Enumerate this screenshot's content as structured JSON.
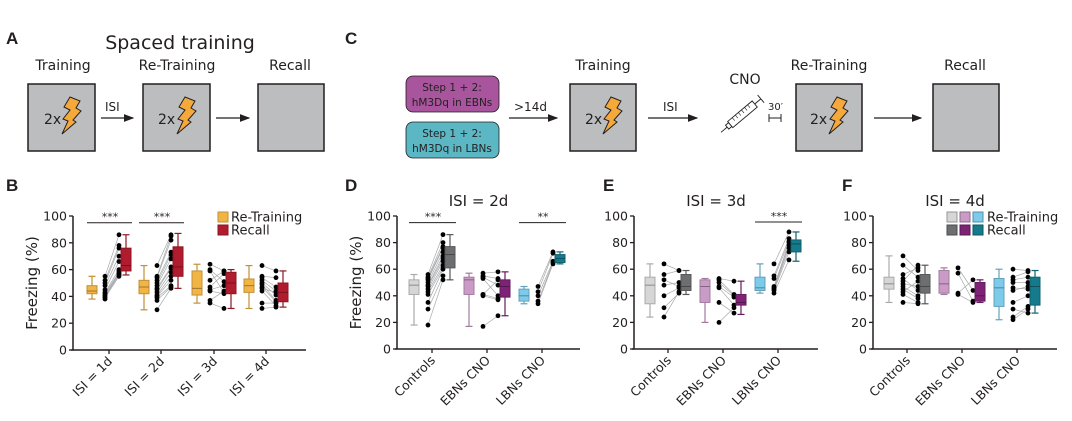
{
  "figure": {
    "panel_A": {
      "letter": "A",
      "title": "Spaced training",
      "stages": [
        {
          "label": "Training",
          "shock_label": "2x",
          "has_shock": true
        },
        {
          "label": "Re-Training",
          "shock_label": "2x",
          "has_shock": true
        },
        {
          "label": "Recall",
          "shock_label": "",
          "has_shock": false
        }
      ],
      "arrows": [
        {
          "label": "ISI"
        },
        {
          "label": ""
        }
      ]
    },
    "panel_C": {
      "letter": "C",
      "steps": [
        {
          "line1": "Step 1 + 2:",
          "line2": "hM3Dq in EBNs",
          "color": "#a8559d"
        },
        {
          "line1": "Step 1 + 2:",
          "line2": "hM3Dq in LBNs",
          "color": "#5bb7c3"
        }
      ],
      "arrow_labels": [
        ">14d",
        "ISI",
        ""
      ],
      "injection_label": "CNO",
      "delay_label": "30′",
      "stages": [
        {
          "label": "Training",
          "shock_label": "2x",
          "has_shock": true
        },
        {
          "label": "Re-Training",
          "shock_label": "2x",
          "has_shock": true
        },
        {
          "label": "Recall",
          "shock_label": "",
          "has_shock": false
        }
      ]
    },
    "colors": {
      "box_fill": "#bbbdbf",
      "shock": "#f5a93b",
      "retraining_B": "#f2b445",
      "recall_B": "#b01b2e",
      "controls_retraining": "#d6d6d6",
      "controls_recall": "#6d6e70",
      "ebns_retraining": "#c99bc6",
      "ebns_recall": "#7e2276",
      "lbns_retraining": "#7dcbea",
      "lbns_recall": "#147a8c"
    }
  },
  "chart_data": [
    {
      "panel": "B",
      "type": "box",
      "title": "",
      "ylabel": "Freezing (%)",
      "ylim": [
        0,
        100
      ],
      "yticks": [
        0,
        20,
        40,
        60,
        80,
        100
      ],
      "categories": [
        "ISI = 1d",
        "ISI = 2d",
        "ISI = 3d",
        "ISI = 4d"
      ],
      "legend": {
        "position": "top-right",
        "entries": [
          "Re-Training",
          "Recall"
        ]
      },
      "significance": [
        {
          "category": "ISI = 1d",
          "label": "***"
        },
        {
          "category": "ISI = 2d",
          "label": "***"
        }
      ],
      "groups": [
        {
          "retraining": {
            "min": 38,
            "q1": 42,
            "median": 44,
            "q3": 48,
            "max": 55
          },
          "recall": {
            "min": 56,
            "q1": 59,
            "median": 63,
            "q3": 76,
            "max": 86
          },
          "pairs": [
            [
              55,
              86
            ],
            [
              52,
              78
            ],
            [
              50,
              76
            ],
            [
              48,
              70
            ],
            [
              45,
              66
            ],
            [
              43,
              60
            ],
            [
              42,
              58
            ],
            [
              41,
              57
            ],
            [
              40,
              56
            ],
            [
              39,
              55
            ],
            [
              38,
              59
            ]
          ]
        },
        {
          "retraining": {
            "min": 30,
            "q1": 42,
            "median": 47,
            "q3": 52,
            "max": 63
          },
          "recall": {
            "min": 46,
            "q1": 55,
            "median": 62,
            "q3": 77,
            "max": 87
          },
          "pairs": [
            [
              63,
              86
            ],
            [
              55,
              85
            ],
            [
              54,
              82
            ],
            [
              52,
              73
            ],
            [
              50,
              71
            ],
            [
              48,
              68
            ],
            [
              46,
              62
            ],
            [
              45,
              61
            ],
            [
              43,
              58
            ],
            [
              41,
              55
            ],
            [
              40,
              52
            ],
            [
              39,
              48
            ],
            [
              37,
              47
            ],
            [
              30,
              46
            ]
          ]
        },
        {
          "retraining": {
            "min": 35,
            "q1": 41,
            "median": 46,
            "q3": 59,
            "max": 64
          },
          "recall": {
            "min": 31,
            "q1": 42,
            "median": 50,
            "q3": 58,
            "max": 60
          },
          "pairs": [
            [
              64,
              59
            ],
            [
              60,
              51
            ],
            [
              59,
              43
            ],
            [
              52,
              59
            ],
            [
              47,
              57
            ],
            [
              45,
              48
            ],
            [
              44,
              42
            ],
            [
              37,
              44
            ],
            [
              35,
              31
            ]
          ]
        },
        {
          "retraining": {
            "min": 31,
            "q1": 43,
            "median": 48,
            "q3": 53,
            "max": 63
          },
          "recall": {
            "min": 32,
            "q1": 36,
            "median": 43,
            "q3": 50,
            "max": 59
          },
          "pairs": [
            [
              63,
              59
            ],
            [
              55,
              54
            ],
            [
              54,
              47
            ],
            [
              52,
              44
            ],
            [
              50,
              41
            ],
            [
              49,
              37
            ],
            [
              47,
              36
            ],
            [
              46,
              43
            ],
            [
              44,
              33
            ],
            [
              35,
              35
            ],
            [
              31,
              32
            ]
          ]
        }
      ]
    },
    {
      "panel": "D",
      "type": "box",
      "title": "ISI = 2d",
      "ylabel": "Freezing (%)",
      "ylim": [
        0,
        100
      ],
      "yticks": [
        0,
        20,
        40,
        60,
        80,
        100
      ],
      "categories": [
        "Controls",
        "EBNs CNO",
        "LBNs CNO"
      ],
      "significance": [
        {
          "category": "Controls",
          "label": "***"
        },
        {
          "category": "LBNs CNO",
          "label": "**"
        }
      ],
      "groups": [
        {
          "retraining": {
            "min": 18,
            "q1": 41,
            "median": 48,
            "q3": 52,
            "max": 56
          },
          "recall": {
            "min": 52,
            "q1": 61,
            "median": 71,
            "q3": 77,
            "max": 86
          },
          "pairs": [
            [
              56,
              86
            ],
            [
              54,
              80
            ],
            [
              53,
              77
            ],
            [
              52,
              76
            ],
            [
              50,
              73
            ],
            [
              48,
              70
            ],
            [
              47,
              68
            ],
            [
              45,
              66
            ],
            [
              43,
              63
            ],
            [
              41,
              61
            ],
            [
              35,
              60
            ],
            [
              30,
              55
            ],
            [
              18,
              52
            ]
          ]
        },
        {
          "retraining": {
            "min": 17,
            "q1": 41,
            "median": 52,
            "q3": 54,
            "max": 57
          },
          "recall": {
            "min": 25,
            "q1": 39,
            "median": 47,
            "q3": 52,
            "max": 58
          },
          "pairs": [
            [
              57,
              58
            ],
            [
              55,
              53
            ],
            [
              54,
              48
            ],
            [
              53,
              40
            ],
            [
              41,
              52
            ],
            [
              41,
              38
            ],
            [
              40,
              37
            ],
            [
              17,
              25
            ]
          ]
        },
        {
          "retraining": {
            "min": 34,
            "q1": 36,
            "median": 40,
            "q3": 45,
            "max": 47
          },
          "recall": {
            "min": 64,
            "q1": 65,
            "median": 68,
            "q3": 71,
            "max": 73
          },
          "pairs": [
            [
              47,
              73
            ],
            [
              43,
              72
            ],
            [
              40,
              66
            ],
            [
              36,
              65
            ],
            [
              34,
              64
            ]
          ]
        }
      ]
    },
    {
      "panel": "E",
      "type": "box",
      "title": "ISI = 3d",
      "ylabel": "",
      "ylim": [
        0,
        100
      ],
      "yticks": [
        0,
        20,
        40,
        60,
        80,
        100
      ],
      "categories": [
        "Controls",
        "EBNs CNO",
        "LBNs CNO"
      ],
      "significance": [
        {
          "category": "LBNs CNO",
          "label": "***"
        }
      ],
      "groups": [
        {
          "retraining": {
            "min": 24,
            "q1": 34,
            "median": 48,
            "q3": 54,
            "max": 64
          },
          "recall": {
            "min": 41,
            "q1": 44,
            "median": 47,
            "q3": 56,
            "max": 59
          },
          "pairs": [
            [
              64,
              59
            ],
            [
              56,
              59
            ],
            [
              52,
              47
            ],
            [
              48,
              50
            ],
            [
              40,
              46
            ],
            [
              31,
              42
            ],
            [
              24,
              43
            ]
          ]
        },
        {
          "retraining": {
            "min": 20,
            "q1": 35,
            "median": 47,
            "q3": 52,
            "max": 53
          },
          "recall": {
            "min": 26,
            "q1": 33,
            "median": 35,
            "q3": 41,
            "max": 51
          },
          "pairs": [
            [
              53,
              51
            ],
            [
              52,
              41
            ],
            [
              50,
              40
            ],
            [
              47,
              39
            ],
            [
              46,
              33
            ],
            [
              35,
              27
            ],
            [
              20,
              31
            ]
          ]
        },
        {
          "retraining": {
            "min": 42,
            "q1": 44,
            "median": 46,
            "q3": 54,
            "max": 64
          },
          "recall": {
            "min": 66,
            "q1": 73,
            "median": 79,
            "q3": 82,
            "max": 88
          },
          "pairs": [
            [
              64,
              88
            ],
            [
              55,
              83
            ],
            [
              53,
              81
            ],
            [
              47,
              80
            ],
            [
              46,
              78
            ],
            [
              45,
              76
            ],
            [
              44,
              73
            ],
            [
              42,
              67
            ]
          ]
        }
      ]
    },
    {
      "panel": "F",
      "type": "box",
      "title": "ISI = 4d",
      "ylabel": "",
      "ylim": [
        0,
        100
      ],
      "yticks": [
        0,
        20,
        40,
        60,
        80,
        100
      ],
      "categories": [
        "Controls",
        "EBNs CNO",
        "LBNs CNO"
      ],
      "legend": {
        "position": "top-right",
        "entries": [
          "Re-Training",
          "Recall"
        ]
      },
      "significance": [],
      "groups": [
        {
          "retraining": {
            "min": 35,
            "q1": 45,
            "median": 49,
            "q3": 54,
            "max": 70
          },
          "recall": {
            "min": 34,
            "q1": 42,
            "median": 47,
            "q3": 56,
            "max": 63
          },
          "pairs": [
            [
              70,
              59
            ],
            [
              63,
              54
            ],
            [
              56,
              61
            ],
            [
              53,
              44
            ],
            [
              51,
              63
            ],
            [
              49,
              47
            ],
            [
              47,
              40
            ],
            [
              45,
              38
            ],
            [
              43,
              51
            ],
            [
              41,
              35
            ],
            [
              35,
              34
            ]
          ]
        },
        {
          "retraining": {
            "min": 41,
            "q1": 42,
            "median": 49,
            "q3": 59,
            "max": 61
          },
          "recall": {
            "min": 35,
            "q1": 36,
            "median": 40,
            "q3": 50,
            "max": 52
          },
          "pairs": [
            [
              61,
              44
            ],
            [
              57,
              36
            ],
            [
              42,
              52
            ],
            [
              41,
              35
            ]
          ]
        },
        {
          "retraining": {
            "min": 22,
            "q1": 32,
            "median": 46,
            "q3": 53,
            "max": 60
          },
          "recall": {
            "min": 27,
            "q1": 33,
            "median": 47,
            "q3": 54,
            "max": 59
          },
          "pairs": [
            [
              60,
              59
            ],
            [
              54,
              58
            ],
            [
              52,
              54
            ],
            [
              50,
              50
            ],
            [
              46,
              45
            ],
            [
              44,
              47
            ],
            [
              35,
              40
            ],
            [
              24,
              32
            ],
            [
              22,
              30
            ],
            [
              30,
              27
            ]
          ]
        }
      ]
    }
  ]
}
